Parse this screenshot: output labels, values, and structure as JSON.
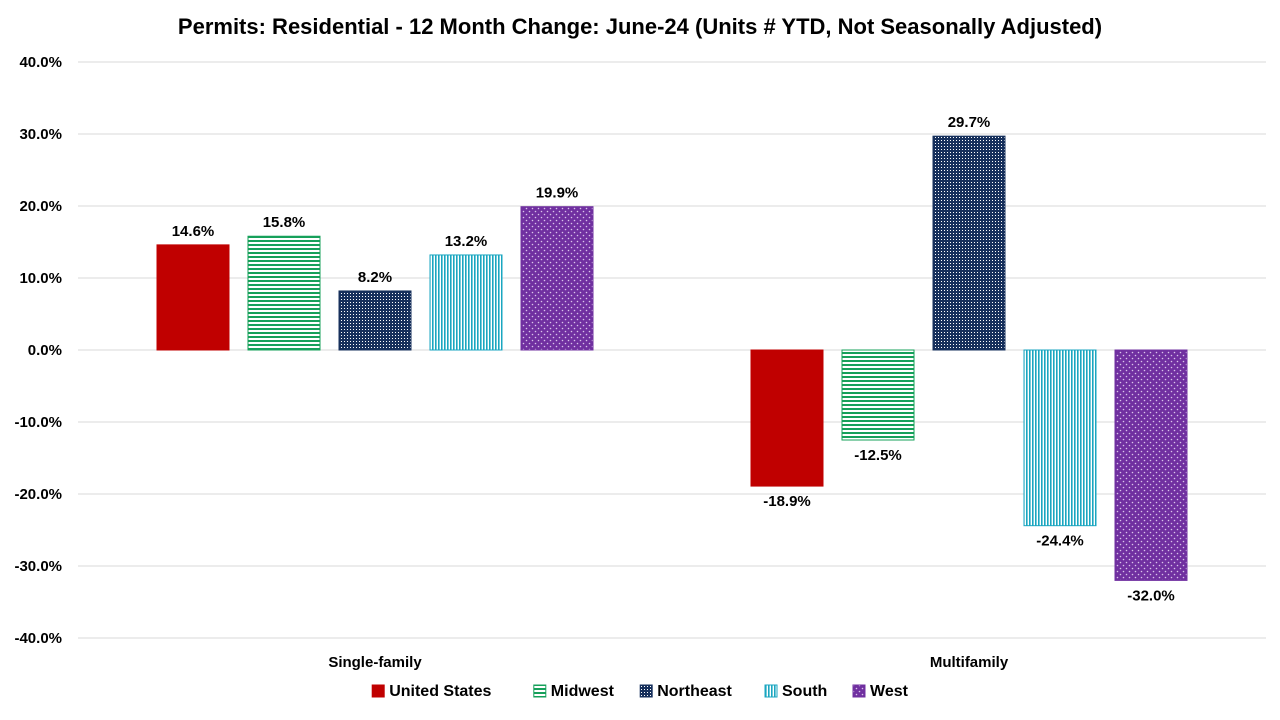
{
  "chart_data": {
    "type": "bar",
    "title": "Permits: Residential - 12 Month Change:  June-24 (Units # YTD, Not Seasonally Adjusted)",
    "xlabel": "",
    "ylabel": "",
    "categories": [
      "Single-family",
      "Multifamily"
    ],
    "series": [
      {
        "name": "United States",
        "values": [
          14.6,
          -18.9
        ],
        "labels": [
          "14.6%",
          "-18.9%"
        ],
        "color": "#c00000",
        "pattern": "solid"
      },
      {
        "name": "Midwest",
        "values": [
          15.8,
          -12.5
        ],
        "labels": [
          "15.8%",
          "-12.5%"
        ],
        "color": "#16a05a",
        "pattern": "horizontal"
      },
      {
        "name": "Northeast",
        "values": [
          8.2,
          29.7
        ],
        "labels": [
          "8.2%",
          "29.7%"
        ],
        "color": "#17305c",
        "pattern": "grid"
      },
      {
        "name": "South",
        "values": [
          13.2,
          -24.4
        ],
        "labels": [
          "13.2%",
          "-24.4%"
        ],
        "color": "#1aa6c0",
        "pattern": "vertical"
      },
      {
        "name": "West",
        "values": [
          19.9,
          -32.0
        ],
        "labels": [
          "19.9%",
          "-32.0%"
        ],
        "color": "#7030a0",
        "pattern": "dots"
      }
    ],
    "ylim": [
      -40,
      40
    ],
    "yticks": [
      40,
      30,
      20,
      10,
      0,
      -10,
      -20,
      -30,
      -40
    ],
    "ytick_labels": [
      "40.0%",
      "30.0%",
      "20.0%",
      "10.0%",
      "0.0%",
      "-10.0%",
      "-20.0%",
      "-30.0%",
      "-40.0%"
    ],
    "grid": true,
    "legend": "bottom"
  }
}
